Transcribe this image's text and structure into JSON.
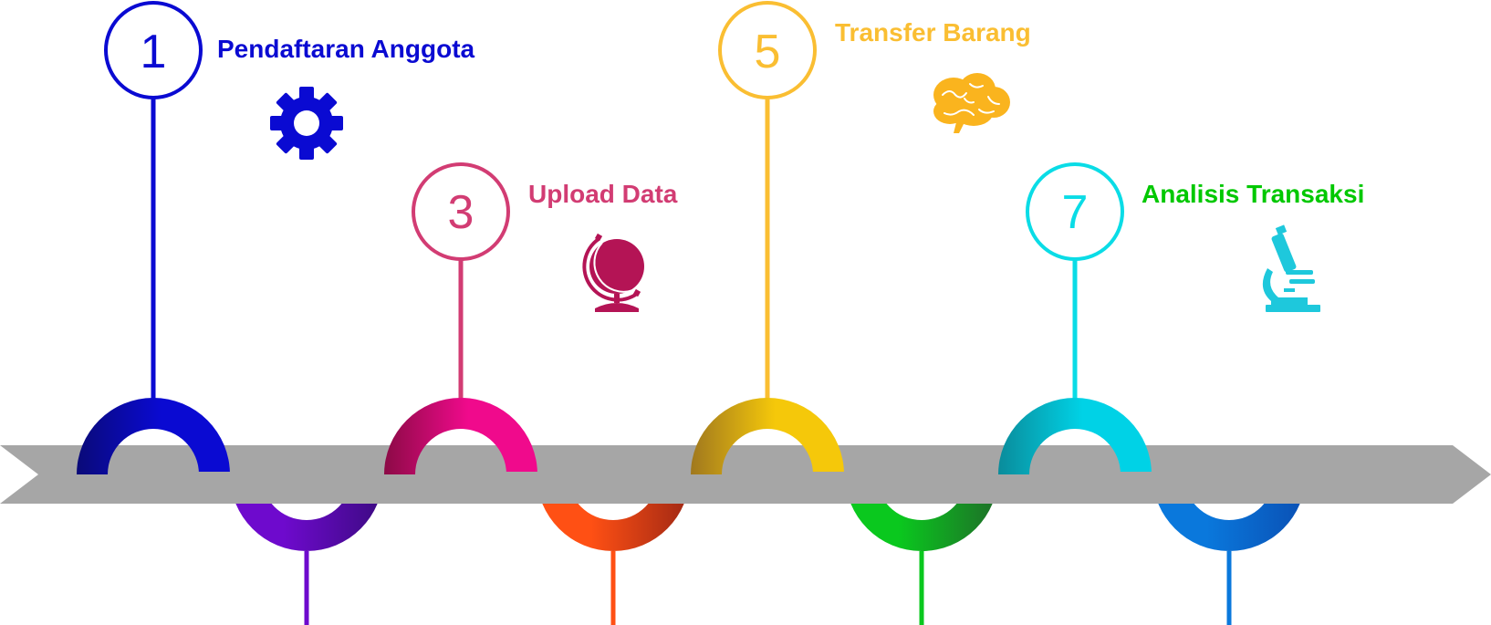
{
  "steps": [
    {
      "number": "1",
      "label": "Pendaftaran Anggota",
      "icon": "gear-icon",
      "color": "#0A0AD2"
    },
    {
      "number": "3",
      "label": "Upload Data",
      "icon": "globe-icon",
      "color": "#D23C73"
    },
    {
      "number": "5",
      "label": "Transfer Barang",
      "icon": "brain-icon",
      "color": "#FABE32"
    },
    {
      "number": "7",
      "label": "Analisis Transaksi",
      "icon": "microscope-icon",
      "color": "#00C800"
    }
  ],
  "colors": {
    "arrow": "#A6A6A6",
    "top_arcs": [
      "#0A0AD2",
      "#F00A8C",
      "#F5C80A",
      "#00D2E6"
    ],
    "bottom_arcs": [
      "#6E0ACD",
      "#FF5014",
      "#0AC81E",
      "#0A78DC"
    ],
    "circle_strokes": [
      "#0A0AD2",
      "#D23C73",
      "#FABE32",
      "#0ADCE6"
    ],
    "icons": [
      "#0A0AD2",
      "#B41455",
      "#FAB41E",
      "#1EC8DC"
    ]
  }
}
